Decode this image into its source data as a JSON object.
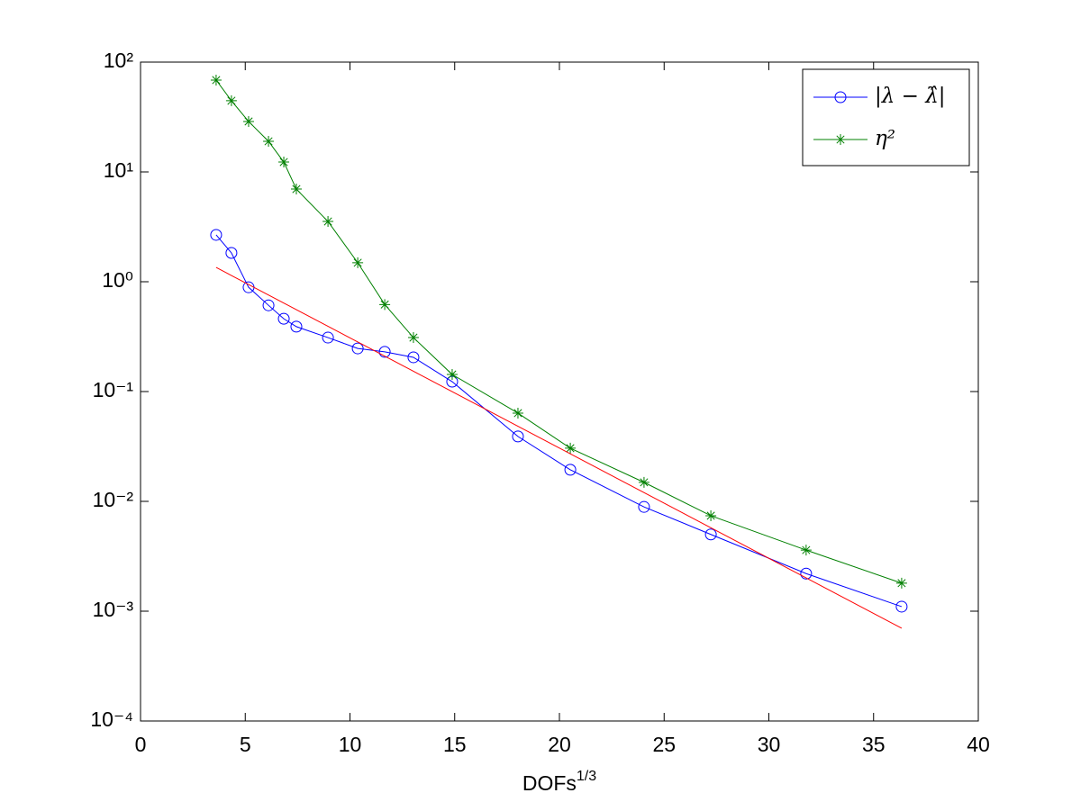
{
  "chart_data": {
    "type": "line",
    "x_label": {
      "text": "DOFs",
      "superscript": "1/3"
    },
    "xlim": [
      0,
      40
    ],
    "xticks": [
      0,
      5,
      10,
      15,
      20,
      25,
      30,
      35,
      40
    ],
    "ylim": [
      0.0001,
      100
    ],
    "yscale": "log",
    "yticks": [
      {
        "value": 0.0001,
        "label": "10⁻⁴"
      },
      {
        "value": 0.001,
        "label": "10⁻³"
      },
      {
        "value": 0.01,
        "label": "10⁻²"
      },
      {
        "value": 0.1,
        "label": "10⁻¹"
      },
      {
        "value": 1,
        "label": "10⁰"
      },
      {
        "value": 10,
        "label": "10¹"
      },
      {
        "value": 100,
        "label": "10²"
      }
    ],
    "legend": "upper right",
    "series": [
      {
        "name": "|λ − λ̂|",
        "color": "#0000ff",
        "marker": "circle",
        "x": [
          3.61,
          4.34,
          5.16,
          6.11,
          6.84,
          7.44,
          8.95,
          10.37,
          11.66,
          13.03,
          14.88,
          18.02,
          20.52,
          24.04,
          27.23,
          31.78,
          36.34
        ],
        "values": [
          2.67,
          1.83,
          0.89,
          0.61,
          0.46,
          0.39,
          0.31,
          0.247,
          0.23,
          0.205,
          0.123,
          0.039,
          0.0194,
          0.0089,
          0.005,
          0.0022,
          0.0011
        ]
      },
      {
        "name": "η²",
        "color": "#008000",
        "marker": "star",
        "x": [
          3.61,
          4.34,
          5.16,
          6.11,
          6.84,
          7.44,
          8.95,
          10.37,
          11.66,
          13.03,
          14.88,
          18.02,
          20.52,
          24.04,
          27.23,
          31.78,
          36.34
        ],
        "values": [
          68.6,
          44.5,
          28.8,
          19.0,
          12.3,
          6.98,
          3.54,
          1.49,
          0.62,
          0.31,
          0.143,
          0.0636,
          0.0305,
          0.0149,
          0.0074,
          0.0036,
          0.0018
        ]
      },
      {
        "color": "#ff0000",
        "marker": "none",
        "x": [
          3.61,
          36.34
        ],
        "values": [
          1.35,
          0.0007
        ]
      }
    ]
  }
}
